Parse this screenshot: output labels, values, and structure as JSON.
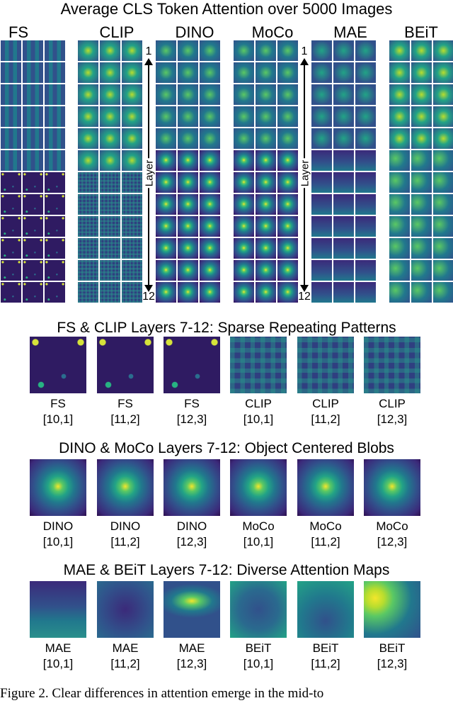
{
  "figure": {
    "title": "Average CLS Token Attention over 5000 Images",
    "models": [
      "FS",
      "CLIP",
      "DINO",
      "MoCo",
      "MAE",
      "BEiT"
    ],
    "layer_axis": {
      "label": "Layer",
      "top": "1",
      "bottom": "12"
    }
  },
  "panels": [
    {
      "title": "FS & CLIP Layers 7-12: Sparse Repeating Patterns",
      "items": [
        {
          "model": "FS",
          "idx": "[10,1]",
          "kind": "sparse"
        },
        {
          "model": "FS",
          "idx": "[11,2]",
          "kind": "sparse"
        },
        {
          "model": "FS",
          "idx": "[12,3]",
          "kind": "sparse"
        },
        {
          "model": "CLIP",
          "idx": "[10,1]",
          "kind": "grid"
        },
        {
          "model": "CLIP",
          "idx": "[11,2]",
          "kind": "grid"
        },
        {
          "model": "CLIP",
          "idx": "[12,3]",
          "kind": "grid"
        }
      ]
    },
    {
      "title": "DINO & MoCo Layers 7-12: Object Centered Blobs",
      "items": [
        {
          "model": "DINO",
          "idx": "[10,1]",
          "kind": "blob"
        },
        {
          "model": "DINO",
          "idx": "[11,2]",
          "kind": "blob"
        },
        {
          "model": "DINO",
          "idx": "[12,3]",
          "kind": "blob"
        },
        {
          "model": "MoCo",
          "idx": "[10,1]",
          "kind": "blob"
        },
        {
          "model": "MoCo",
          "idx": "[11,2]",
          "kind": "blob"
        },
        {
          "model": "MoCo",
          "idx": "[12,3]",
          "kind": "blob"
        }
      ]
    },
    {
      "title": "MAE & BEiT Layers 7-12: Diverse Attention Maps",
      "items": [
        {
          "model": "MAE",
          "idx": "[10,1]",
          "kind": "mae1"
        },
        {
          "model": "MAE",
          "idx": "[11,2]",
          "kind": "mae2"
        },
        {
          "model": "MAE",
          "idx": "[12,3]",
          "kind": "mae3"
        },
        {
          "model": "BEiT",
          "idx": "[10,1]",
          "kind": "beit1"
        },
        {
          "model": "BEiT",
          "idx": "[11,2]",
          "kind": "beit2"
        },
        {
          "model": "BEiT",
          "idx": "[12,3]",
          "kind": "beit3"
        }
      ]
    }
  ],
  "caption": "Figure 2. Clear differences in attention emerge in the mid-to"
}
